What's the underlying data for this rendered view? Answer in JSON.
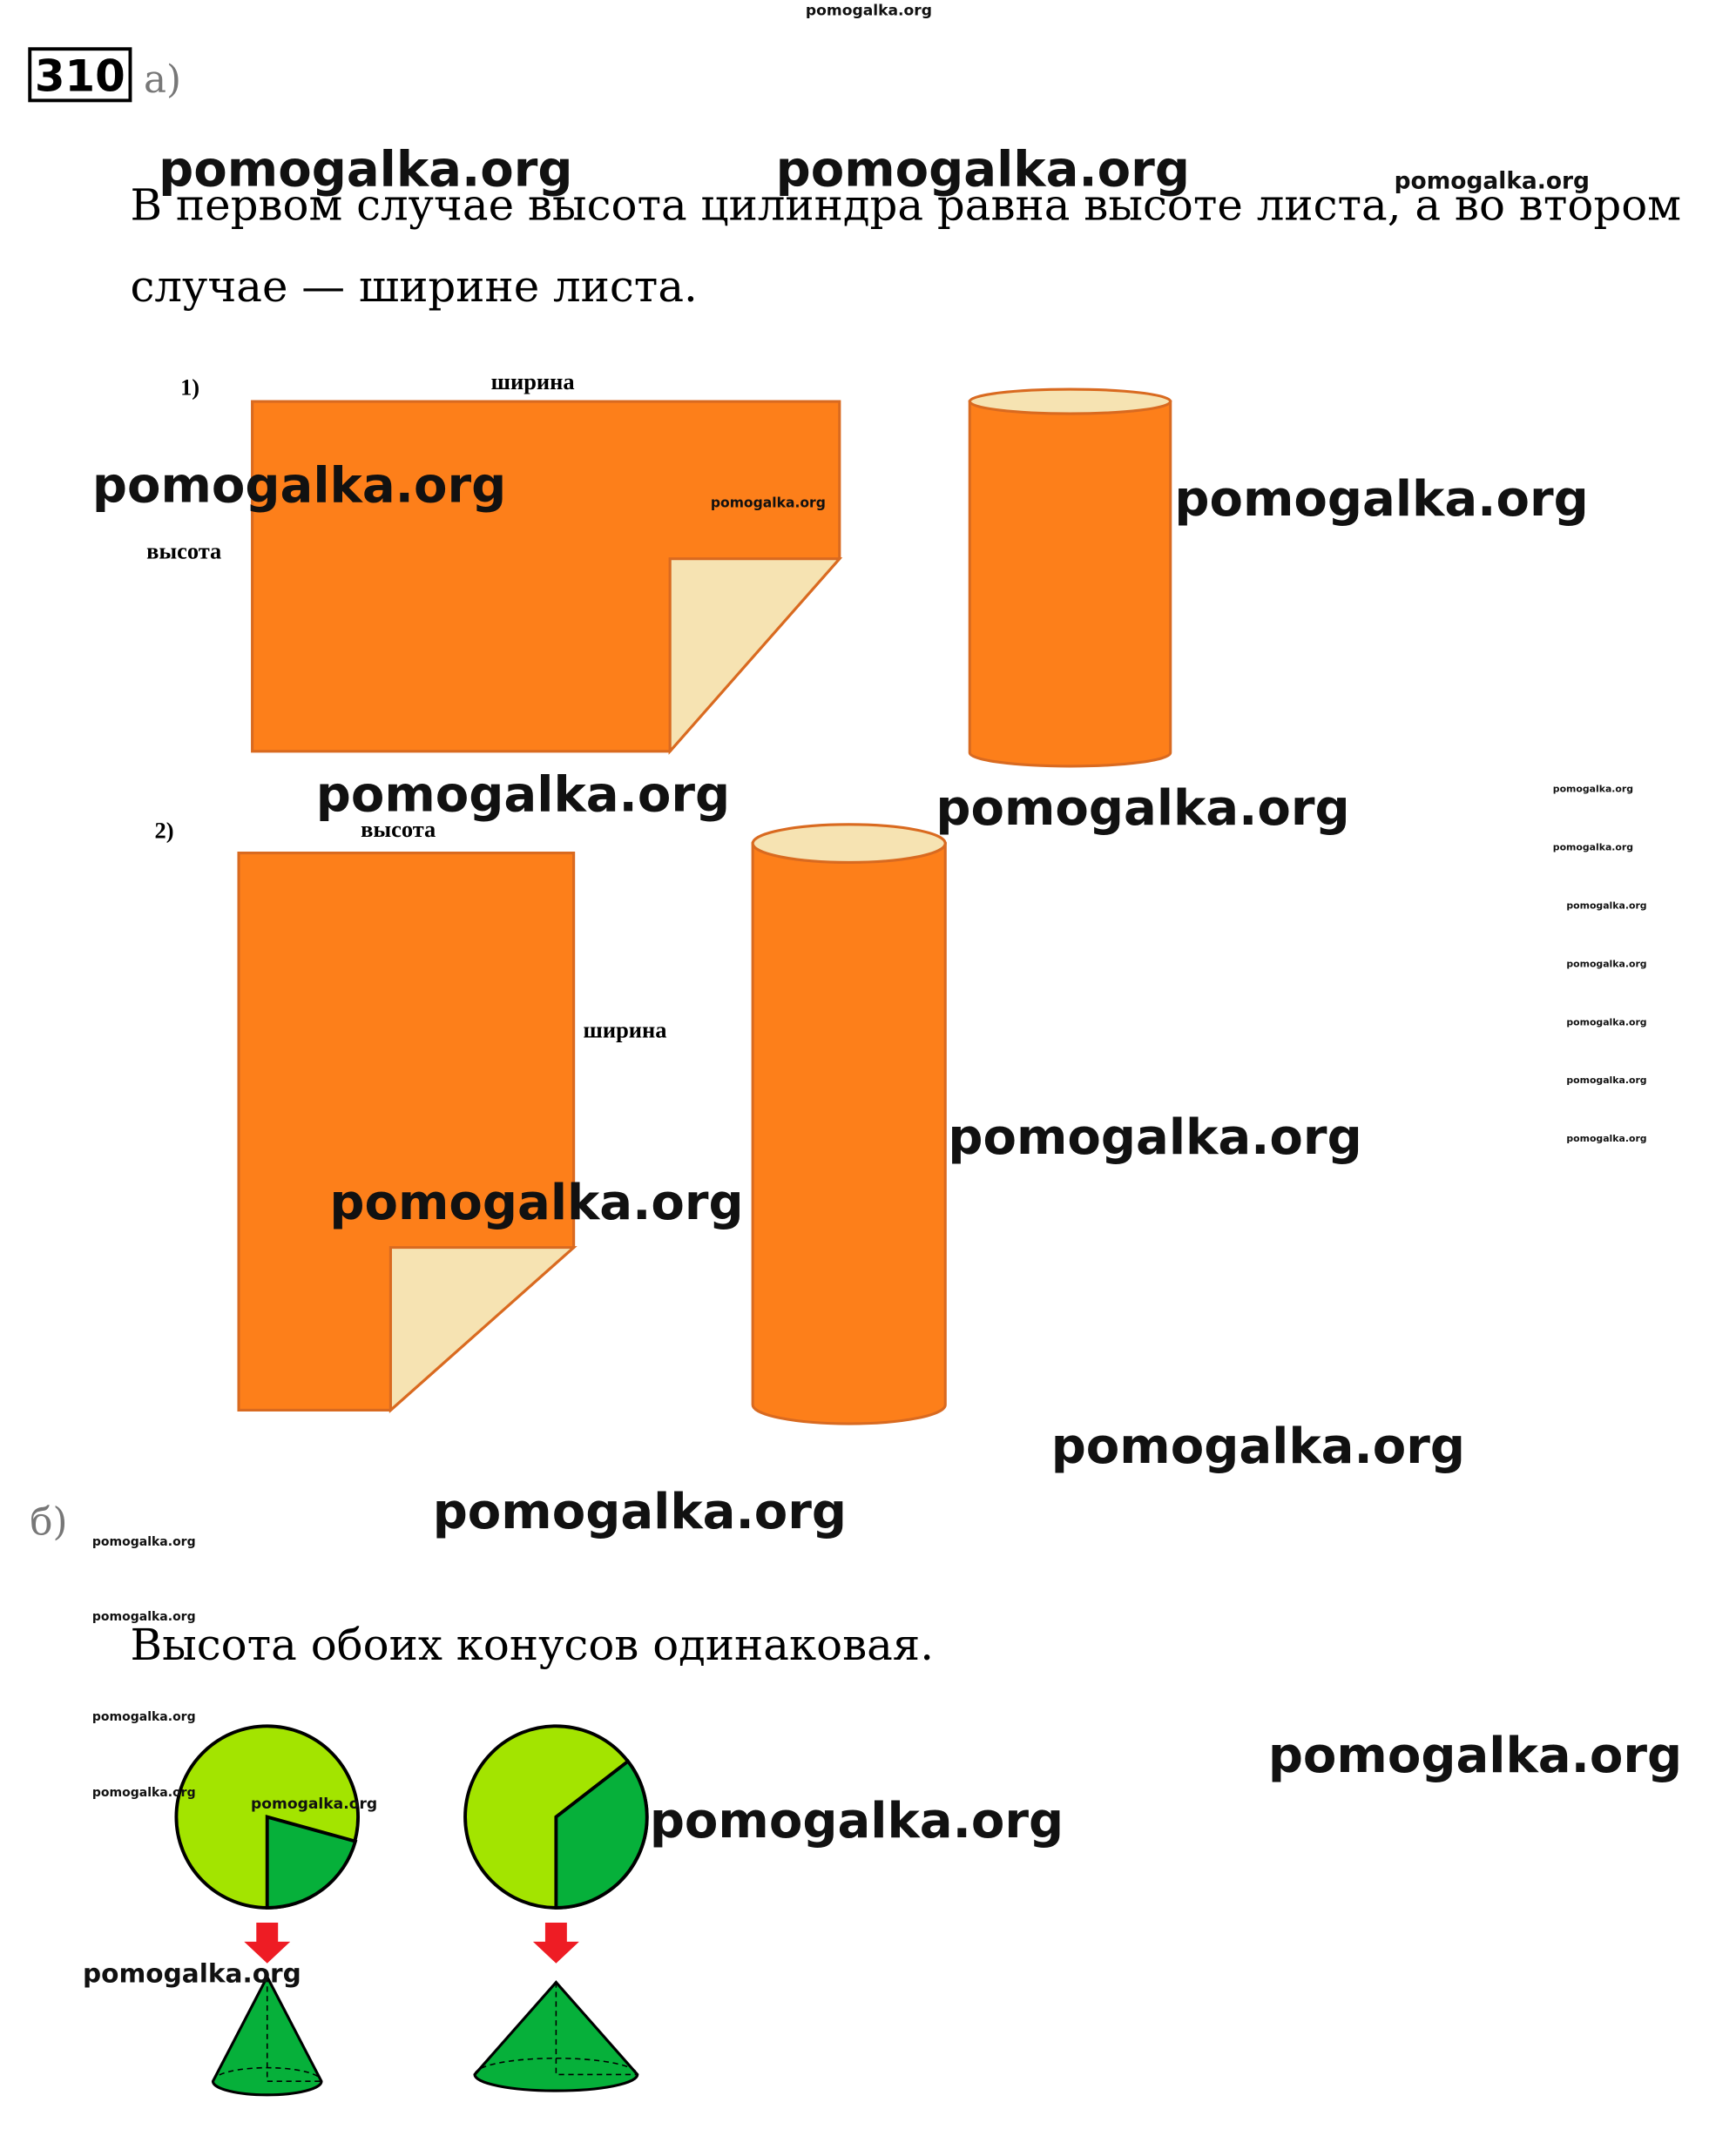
{
  "problem": {
    "number": "310",
    "part_a": "а)",
    "part_b": "б)"
  },
  "part_a": {
    "text_lines": [
      "В первом случае высота цилиндра равна высоте листа, а во втором",
      "случае — ширине листа."
    ],
    "case_1": {
      "label": "1)",
      "width": "ширина",
      "height": "высота"
    },
    "case_2": {
      "label": "2)",
      "height": "высота",
      "width": "ширина"
    }
  },
  "part_b": {
    "text": "Высота обоих конусов одинаковая."
  },
  "watermarks": [
    "pomogalka.org",
    "pomogalka.org",
    "pomogalka.org",
    "pomogalka.org",
    "pomogalka.org",
    "pomogalka.org",
    "pomogalka.org",
    "pomogalka.org",
    "pomogalka.org",
    "pomogalka.org",
    "pomogalka.org",
    "pomogalka.org",
    "pomogalka.org",
    "pomogalka.org",
    "pomogalka.org",
    "pomogalka.org",
    "pomogalka.org",
    "pomogalka.org",
    "pomogalka.org",
    "pomogalka.org",
    "pomogalka.org",
    "pomogalka.org",
    "pomogalka.org",
    "pomogalka.org",
    "pomogalka.org",
    "pomogalka.org",
    "pomogalka.org",
    "pomogalka.org"
  ]
}
